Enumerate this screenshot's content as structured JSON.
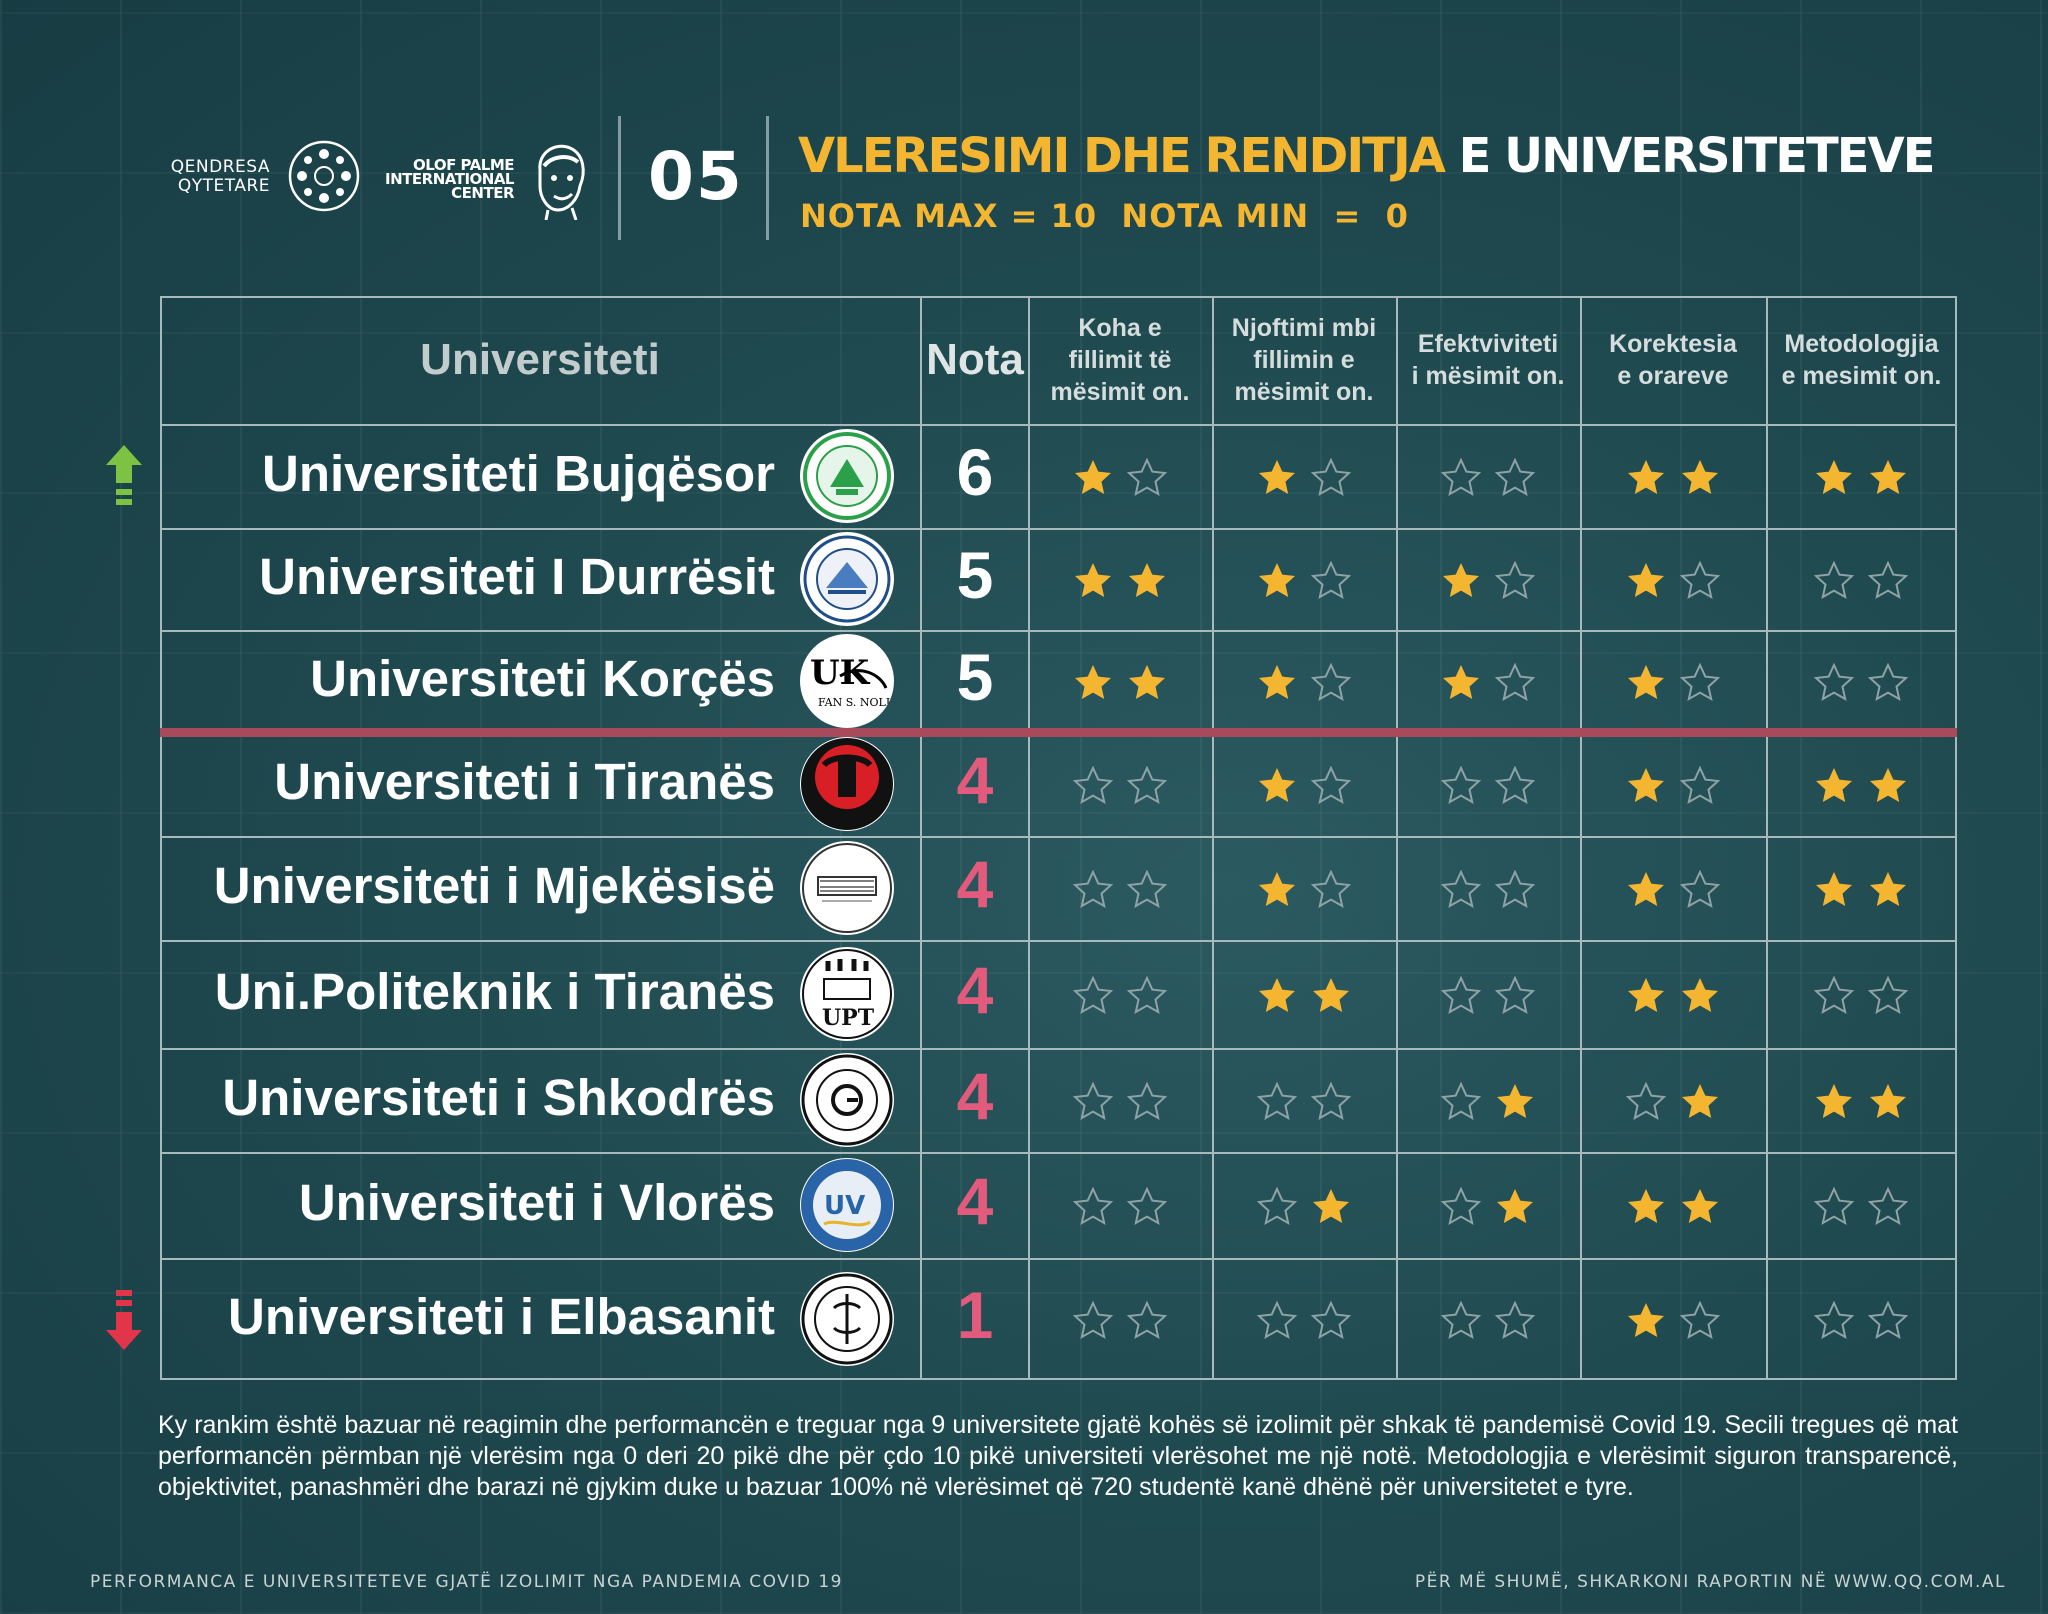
{
  "header": {
    "org1_line1": "QENDRESA",
    "org1_line2": "QYTETARE",
    "org2_line1": "OLOF PALME",
    "org2_line2": "INTERNATIONAL",
    "org2_line3": "CENTER",
    "number": "05",
    "title_highlight": "VLERESIMI DHE RENDITJA",
    "title_rest": " E UNIVERSITETEVE",
    "subtitle": "NOTA MAX = 10  NOTA MIN  =  0"
  },
  "colors": {
    "accent": "#f4b531",
    "score_red": "#e25b7c",
    "arrow_up": "#7dc242",
    "arrow_down": "#e2344a",
    "divider": "#a84a5c"
  },
  "table": {
    "headers": {
      "university": "Universiteti",
      "grade": "Nota",
      "c1a": "Koha e",
      "c1b": "fillimit të",
      "c1c": "mësimit on.",
      "c2a": "Njoftimi mbi",
      "c2b": "fillimin e",
      "c2c": "mësimit on.",
      "c3a": "Efektviviteti",
      "c3b": "i mësimit on.",
      "c4a": "Korektesia",
      "c4b": "e orareve",
      "c5a": "Metodologjia",
      "c5b": "e mesimit on."
    },
    "rows": [
      {
        "name": "Universiteti Bujqësor",
        "logo": "agricultural-university-logo",
        "score": "6",
        "trend": "up",
        "stars": [
          [
            1,
            0
          ],
          [
            1,
            0
          ],
          [
            0,
            0
          ],
          [
            1,
            1
          ],
          [
            1,
            1
          ]
        ]
      },
      {
        "name": "Universiteti I Durrësit",
        "logo": "durres-university-logo",
        "score": "5",
        "trend": "",
        "stars": [
          [
            1,
            1
          ],
          [
            1,
            0
          ],
          [
            1,
            0
          ],
          [
            1,
            0
          ],
          [
            0,
            0
          ]
        ]
      },
      {
        "name": "Universiteti Korçës",
        "logo": "korca-university-logo",
        "logo_text": "UK",
        "logo_sub": "FAN S. NOLI",
        "score": "5",
        "trend": "",
        "stars": [
          [
            1,
            1
          ],
          [
            1,
            0
          ],
          [
            1,
            0
          ],
          [
            1,
            0
          ],
          [
            0,
            0
          ]
        ]
      },
      {
        "name": "Universiteti i Tiranës",
        "logo": "tirana-university-logo",
        "score": "4",
        "trend": "",
        "stars": [
          [
            0,
            0
          ],
          [
            1,
            0
          ],
          [
            0,
            0
          ],
          [
            1,
            0
          ],
          [
            1,
            1
          ]
        ]
      },
      {
        "name": "Universiteti i Mjekësisë",
        "logo": "medicine-university-logo",
        "score": "4",
        "trend": "",
        "stars": [
          [
            0,
            0
          ],
          [
            1,
            0
          ],
          [
            0,
            0
          ],
          [
            1,
            0
          ],
          [
            1,
            1
          ]
        ]
      },
      {
        "name": "Uni.Politeknik i Tiranës",
        "logo": "polytechnic-university-logo",
        "logo_text": "UPT",
        "score": "4",
        "trend": "",
        "stars": [
          [
            0,
            0
          ],
          [
            1,
            1
          ],
          [
            0,
            0
          ],
          [
            1,
            1
          ],
          [
            0,
            0
          ]
        ]
      },
      {
        "name": "Universiteti i Shkodrës",
        "logo": "shkodra-university-logo",
        "score": "4",
        "trend": "",
        "stars": [
          [
            0,
            0
          ],
          [
            0,
            0
          ],
          [
            0,
            1
          ],
          [
            0,
            1
          ],
          [
            1,
            1
          ]
        ]
      },
      {
        "name": "Universiteti i Vlorës",
        "logo": "vlora-university-logo",
        "logo_text": "UV",
        "score": "4",
        "trend": "",
        "stars": [
          [
            0,
            0
          ],
          [
            0,
            1
          ],
          [
            0,
            1
          ],
          [
            1,
            1
          ],
          [
            0,
            0
          ]
        ]
      },
      {
        "name": "Universiteti i Elbasanit",
        "logo": "elbasan-university-logo",
        "score": "1",
        "trend": "down",
        "stars": [
          [
            0,
            0
          ],
          [
            0,
            0
          ],
          [
            0,
            0
          ],
          [
            1,
            0
          ],
          [
            0,
            0
          ]
        ]
      }
    ]
  },
  "note": "Ky rankim është bazuar në reagimin dhe performancën e treguar nga 9 universitete gjatë kohës së izolimit për shkak të pandemisë Covid 19. Secili tregues që mat performancën përmban një vlerësim nga 0 deri 20 pikë dhe për çdo 10 pikë universiteti vlerësohet me një notë. Metodologjia e vlerësimit siguron transparencë, objektivitet, panashmëri dhe barazi në gjykim duke u bazuar 100% në vlerësimet që 720 studentë kanë dhënë për universitetet e tyre.",
  "footer": {
    "left": "PERFORMANCA E UNIVERSITETEVE GJATË IZOLIMIT NGA PANDEMIA COVID 19",
    "right": "PËR MË SHUMË, SHKARKONI RAPORTIN NË WWW.QQ.COM.AL"
  }
}
